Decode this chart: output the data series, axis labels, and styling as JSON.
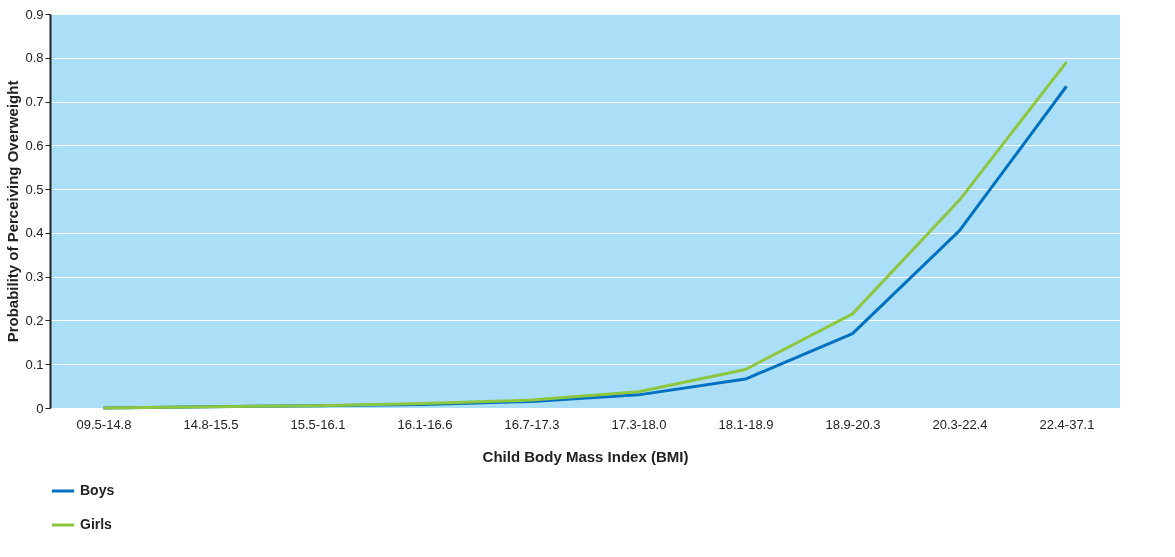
{
  "chart_data": {
    "type": "line",
    "xlabel": "Child Body Mass Index (BMI)",
    "ylabel": "Probability of Perceiving Overweight",
    "categories": [
      "09.5-14.8",
      "14.8-15.5",
      "15.5-16.1",
      "16.1-16.6",
      "16.7-17.3",
      "17.3-18.0",
      "18.1-18.9",
      "18.9-20.3",
      "20.3-22.4",
      "22.4-37.1"
    ],
    "series": [
      {
        "name": "Boys",
        "color": "#0070c0",
        "values": [
          0.0,
          0.003,
          0.005,
          0.008,
          0.015,
          0.03,
          0.066,
          0.17,
          0.405,
          0.735
        ]
      },
      {
        "name": "Girls",
        "color": "#8dc63f",
        "values": [
          0.0,
          0.003,
          0.005,
          0.01,
          0.018,
          0.037,
          0.088,
          0.215,
          0.475,
          0.79
        ]
      }
    ],
    "ylim": [
      0,
      0.9
    ],
    "yticks": [
      0,
      0.1,
      0.2,
      0.3,
      0.4,
      0.5,
      0.6,
      0.7,
      0.8,
      0.9
    ],
    "grid": "y",
    "legend": "bottom left",
    "marker": "none",
    "line_style": "solid"
  }
}
